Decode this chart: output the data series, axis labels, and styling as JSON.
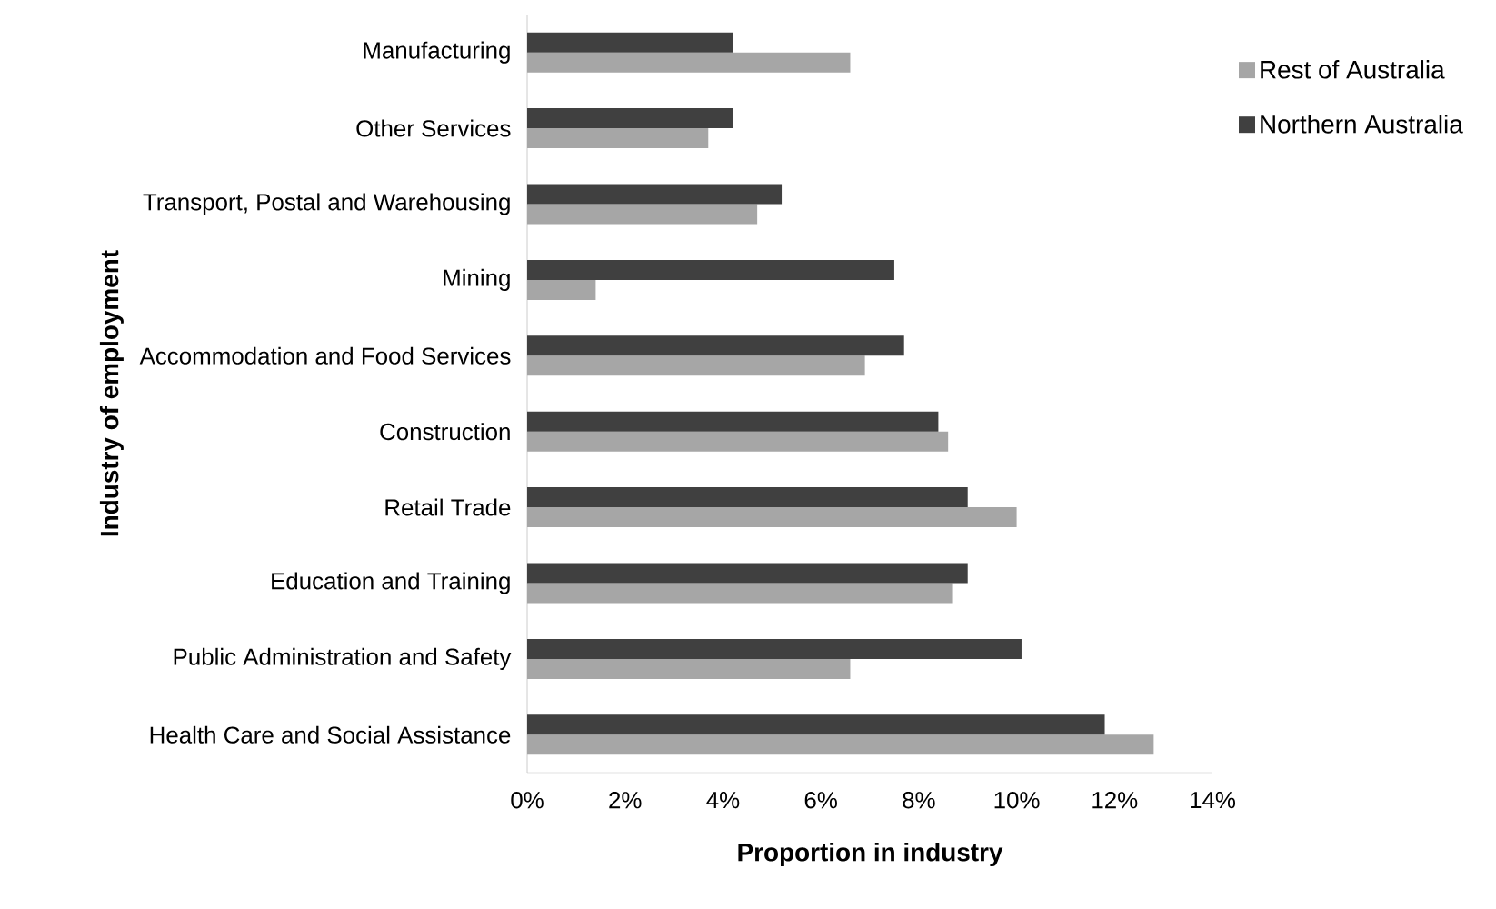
{
  "chart_data": {
    "type": "bar",
    "orientation": "horizontal",
    "xlabel": "Proportion in industry",
    "ylabel": "Industry of employment",
    "categories": [
      "Manufacturing",
      "Other Services",
      "Transport, Postal and Warehousing",
      "Mining",
      "Accommodation and Food Services",
      "Construction",
      "Retail Trade",
      "Education and Training",
      "Public Administration and Safety",
      "Health Care and Social Assistance"
    ],
    "series": [
      {
        "name": "Rest of Australia",
        "color": "#a6a6a6",
        "values": [
          6.6,
          3.7,
          4.7,
          1.4,
          6.9,
          8.6,
          10.0,
          8.7,
          6.6,
          12.8
        ]
      },
      {
        "name": "Northern Australia",
        "color": "#404040",
        "values": [
          4.2,
          4.2,
          5.2,
          7.5,
          7.7,
          8.4,
          9.0,
          9.0,
          10.1,
          11.8
        ]
      }
    ],
    "xlim": [
      0,
      14
    ],
    "xticks": [
      {
        "value": 0,
        "label": "0%"
      },
      {
        "value": 2,
        "label": "2%"
      },
      {
        "value": 4,
        "label": "4%"
      },
      {
        "value": 6,
        "label": "6%"
      },
      {
        "value": 8,
        "label": "8%"
      },
      {
        "value": 10,
        "label": "10%"
      },
      {
        "value": 12,
        "label": "12%"
      },
      {
        "value": 14,
        "label": "14%"
      }
    ],
    "grid": false,
    "legend": "right"
  }
}
